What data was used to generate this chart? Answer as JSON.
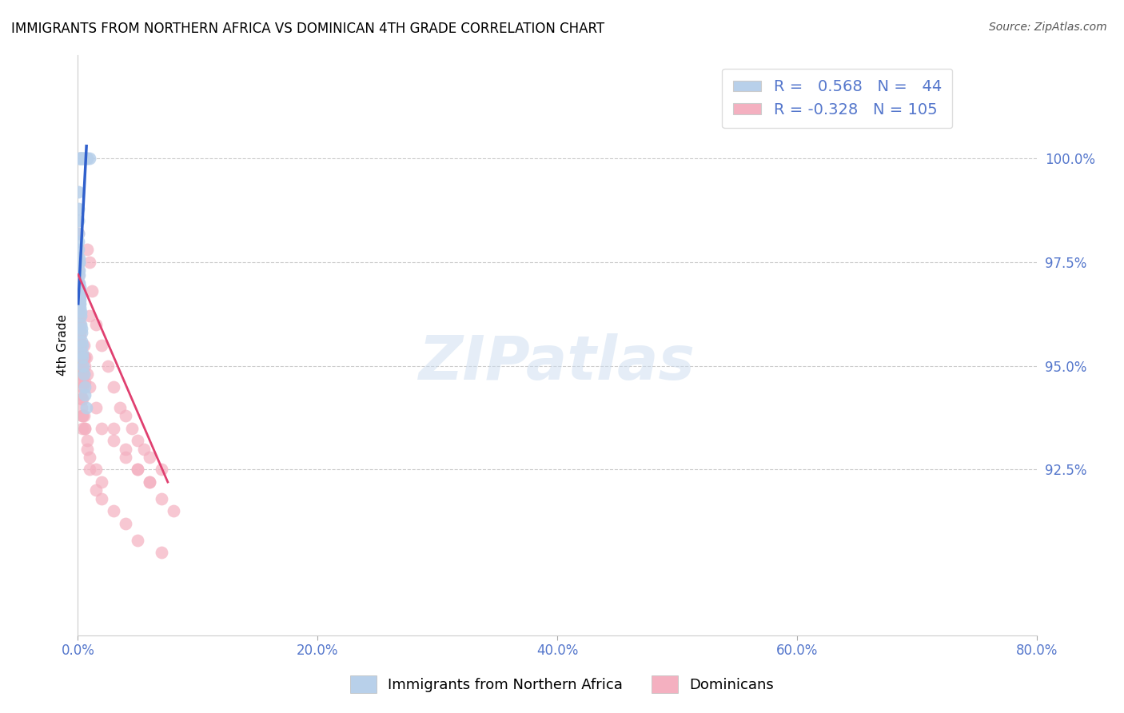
{
  "title": "IMMIGRANTS FROM NORTHERN AFRICA VS DOMINICAN 4TH GRADE CORRELATION CHART",
  "source": "Source: ZipAtlas.com",
  "ylabel": "4th Grade",
  "watermark": "ZIPatlas",
  "blue_R": 0.568,
  "blue_N": 44,
  "pink_R": -0.328,
  "pink_N": 105,
  "blue_label": "Immigrants from Northern Africa",
  "pink_label": "Dominicans",
  "blue_color": "#b8d0ea",
  "pink_color": "#f4b0c0",
  "blue_line_color": "#3060cc",
  "pink_line_color": "#e04070",
  "axis_label_color": "#5577cc",
  "right_yticks": [
    92.5,
    95.0,
    97.5,
    100.0
  ],
  "right_ytick_labels": [
    "92.5%",
    "95.0%",
    "97.5%",
    "100.0%"
  ],
  "xlim": [
    0.0,
    80.0
  ],
  "ylim": [
    88.5,
    102.5
  ],
  "xticklabels": [
    "0.0%",
    "20.0%",
    "40.0%",
    "60.0%",
    "80.0%"
  ],
  "xtick_values": [
    0.0,
    20.0,
    40.0,
    60.0,
    80.0
  ],
  "blue_x": [
    0.1,
    0.15,
    0.2,
    0.25,
    0.3,
    0.35,
    0.4,
    0.5,
    0.6,
    0.7,
    0.8,
    1.0,
    0.05,
    0.05,
    0.06,
    0.06,
    0.07,
    0.07,
    0.08,
    0.09,
    0.1,
    0.1,
    0.12,
    0.12,
    0.15,
    0.15,
    0.17,
    0.18,
    0.2,
    0.2,
    0.22,
    0.25,
    0.25,
    0.28,
    0.3,
    0.3,
    0.35,
    0.38,
    0.4,
    0.45,
    0.5,
    0.55,
    0.6,
    0.7
  ],
  "blue_y": [
    100.0,
    100.0,
    100.0,
    100.0,
    100.0,
    100.0,
    100.0,
    100.0,
    100.0,
    100.0,
    100.0,
    100.0,
    99.2,
    98.8,
    98.5,
    98.2,
    98.0,
    97.8,
    97.6,
    97.5,
    97.5,
    97.3,
    97.2,
    97.0,
    96.9,
    96.8,
    96.7,
    96.6,
    96.5,
    96.4,
    96.3,
    96.2,
    96.0,
    95.9,
    95.8,
    95.6,
    95.5,
    95.3,
    95.2,
    95.0,
    94.8,
    94.5,
    94.3,
    94.0
  ],
  "pink_x": [
    0.05,
    0.05,
    0.05,
    0.06,
    0.06,
    0.07,
    0.07,
    0.08,
    0.08,
    0.09,
    0.1,
    0.1,
    0.1,
    0.12,
    0.12,
    0.15,
    0.15,
    0.18,
    0.18,
    0.2,
    0.2,
    0.22,
    0.25,
    0.25,
    0.3,
    0.3,
    0.35,
    0.35,
    0.4,
    0.4,
    0.5,
    0.5,
    0.6,
    0.6,
    0.7,
    0.8,
    1.0,
    1.0,
    1.2,
    1.5,
    2.0,
    2.5,
    3.0,
    3.5,
    4.0,
    4.5,
    5.0,
    5.5,
    6.0,
    7.0,
    0.05,
    0.06,
    0.07,
    0.08,
    0.09,
    0.1,
    0.12,
    0.15,
    0.18,
    0.2,
    0.25,
    0.3,
    0.35,
    0.4,
    0.5,
    0.6,
    0.8,
    1.0,
    1.5,
    2.0,
    3.0,
    4.0,
    5.0,
    6.0,
    0.08,
    0.1,
    0.15,
    0.2,
    0.3,
    0.4,
    0.6,
    0.8,
    1.0,
    1.5,
    2.0,
    3.0,
    4.0,
    5.0,
    6.0,
    7.0,
    8.0,
    0.1,
    0.2,
    0.3,
    0.4,
    0.5,
    0.6,
    0.8,
    1.0,
    1.5,
    2.0,
    3.0,
    4.0,
    5.0,
    7.0
  ],
  "pink_y": [
    97.6,
    97.2,
    96.9,
    97.3,
    96.8,
    97.0,
    96.5,
    96.8,
    96.2,
    96.5,
    96.8,
    96.3,
    95.9,
    96.1,
    95.7,
    96.0,
    95.5,
    95.8,
    95.3,
    95.7,
    95.2,
    95.5,
    95.3,
    95.0,
    95.2,
    94.8,
    95.0,
    94.6,
    94.9,
    94.5,
    95.2,
    94.8,
    95.0,
    94.6,
    95.2,
    97.8,
    97.5,
    96.2,
    96.8,
    96.0,
    95.5,
    95.0,
    94.5,
    94.0,
    93.8,
    93.5,
    93.2,
    93.0,
    92.8,
    92.5,
    98.2,
    97.5,
    97.0,
    96.6,
    96.2,
    95.8,
    95.5,
    95.2,
    94.9,
    94.6,
    94.3,
    94.0,
    93.8,
    93.5,
    95.5,
    95.2,
    94.8,
    94.5,
    94.0,
    93.5,
    93.2,
    92.8,
    92.5,
    92.2,
    96.5,
    95.8,
    95.2,
    94.8,
    94.2,
    93.8,
    93.5,
    93.2,
    92.8,
    92.5,
    92.2,
    93.5,
    93.0,
    92.5,
    92.2,
    91.8,
    91.5,
    96.2,
    95.5,
    94.8,
    94.2,
    93.8,
    93.5,
    93.0,
    92.5,
    92.0,
    91.8,
    91.5,
    91.2,
    90.8,
    90.5
  ],
  "blue_trend_x": [
    0.05,
    0.7
  ],
  "blue_trend_y": [
    96.8,
    100.0
  ],
  "pink_trend_x": [
    0.05,
    7.0
  ],
  "pink_trend_y": [
    97.0,
    92.5
  ]
}
